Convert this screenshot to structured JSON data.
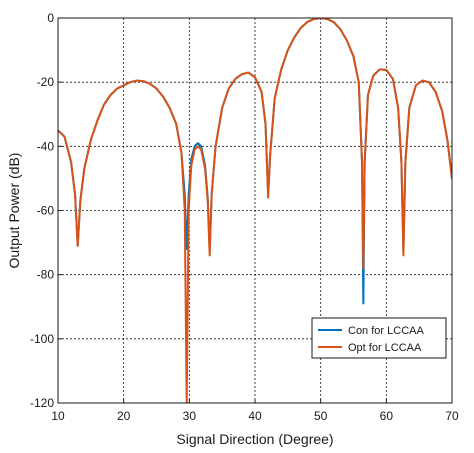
{
  "chart_data": {
    "type": "line",
    "title": "",
    "xlabel": "Signal Direction (Degree)",
    "ylabel": "Output Power (dB)",
    "xlim": [
      10,
      70
    ],
    "ylim": [
      -120,
      0
    ],
    "xticks": [
      10,
      20,
      30,
      40,
      50,
      60,
      70
    ],
    "yticks": [
      0,
      -20,
      -40,
      -60,
      -80,
      -100,
      -120
    ],
    "grid": true,
    "legend_position": "bottom-right",
    "series": [
      {
        "name": "Con for LCCAA",
        "color": "#0072BD",
        "points": [
          [
            10,
            -35
          ],
          [
            11,
            -37
          ],
          [
            12,
            -45
          ],
          [
            12.6,
            -55
          ],
          [
            13,
            -71
          ],
          [
            13.4,
            -57
          ],
          [
            14,
            -47
          ],
          [
            15,
            -38
          ],
          [
            16,
            -32
          ],
          [
            17,
            -27
          ],
          [
            18,
            -24
          ],
          [
            19,
            -22
          ],
          [
            20,
            -21
          ],
          [
            21,
            -20
          ],
          [
            22,
            -19.5
          ],
          [
            23,
            -19.7
          ],
          [
            24,
            -20.5
          ],
          [
            25,
            -22
          ],
          [
            26,
            -24.5
          ],
          [
            27,
            -28
          ],
          [
            28,
            -33
          ],
          [
            28.8,
            -42
          ],
          [
            29.3,
            -55
          ],
          [
            29.6,
            -72
          ],
          [
            29.9,
            -55
          ],
          [
            30.3,
            -44
          ],
          [
            30.8,
            -40
          ],
          [
            31.3,
            -39
          ],
          [
            31.8,
            -40
          ],
          [
            32.4,
            -46
          ],
          [
            32.8,
            -56
          ],
          [
            33.1,
            -73
          ],
          [
            33.4,
            -55
          ],
          [
            34,
            -40
          ],
          [
            35,
            -28
          ],
          [
            36,
            -22
          ],
          [
            37,
            -19
          ],
          [
            38,
            -17.5
          ],
          [
            39,
            -17
          ],
          [
            40,
            -18.5
          ],
          [
            41,
            -23
          ],
          [
            41.6,
            -33
          ],
          [
            42.0,
            -55
          ],
          [
            42.3,
            -43
          ],
          [
            43,
            -25
          ],
          [
            44,
            -16
          ],
          [
            45,
            -10
          ],
          [
            46,
            -6
          ],
          [
            47,
            -3
          ],
          [
            48,
            -1.2
          ],
          [
            49,
            -0.3
          ],
          [
            50,
            0
          ],
          [
            51,
            -0.3
          ],
          [
            52,
            -1.3
          ],
          [
            53,
            -3.5
          ],
          [
            54,
            -7
          ],
          [
            55,
            -12
          ],
          [
            55.8,
            -20
          ],
          [
            56.3,
            -45
          ],
          [
            56.5,
            -89
          ],
          [
            56.7,
            -45
          ],
          [
            57.2,
            -24
          ],
          [
            58,
            -18
          ],
          [
            59,
            -16
          ],
          [
            60,
            -16.2
          ],
          [
            61,
            -19
          ],
          [
            61.8,
            -28
          ],
          [
            62.3,
            -45
          ],
          [
            62.6,
            -73
          ],
          [
            62.9,
            -45
          ],
          [
            63.5,
            -28
          ],
          [
            64.5,
            -21
          ],
          [
            65.5,
            -19.5
          ],
          [
            66.5,
            -20
          ],
          [
            67.5,
            -23
          ],
          [
            68.5,
            -29
          ],
          [
            69.3,
            -38
          ],
          [
            70,
            -50
          ]
        ]
      },
      {
        "name": "Opt for LCCAA",
        "color": "#D95319",
        "points": [
          [
            10,
            -35
          ],
          [
            11,
            -37
          ],
          [
            12,
            -45
          ],
          [
            12.6,
            -55
          ],
          [
            13,
            -71
          ],
          [
            13.4,
            -57
          ],
          [
            14,
            -47
          ],
          [
            15,
            -38
          ],
          [
            16,
            -32
          ],
          [
            17,
            -27
          ],
          [
            18,
            -24
          ],
          [
            19,
            -22
          ],
          [
            20,
            -21
          ],
          [
            21,
            -20
          ],
          [
            22,
            -19.5
          ],
          [
            23,
            -19.7
          ],
          [
            24,
            -20.5
          ],
          [
            25,
            -22
          ],
          [
            26,
            -24.5
          ],
          [
            27,
            -28
          ],
          [
            28,
            -33
          ],
          [
            28.8,
            -42
          ],
          [
            29.3,
            -60
          ],
          [
            29.6,
            -120
          ],
          [
            29.9,
            -60
          ],
          [
            30.3,
            -46
          ],
          [
            30.8,
            -41
          ],
          [
            31.3,
            -40
          ],
          [
            31.8,
            -41
          ],
          [
            32.4,
            -47
          ],
          [
            32.8,
            -57
          ],
          [
            33.1,
            -74
          ],
          [
            33.4,
            -55
          ],
          [
            34,
            -40
          ],
          [
            35,
            -28
          ],
          [
            36,
            -22
          ],
          [
            37,
            -19
          ],
          [
            38,
            -17.5
          ],
          [
            39,
            -17
          ],
          [
            40,
            -18.5
          ],
          [
            41,
            -23
          ],
          [
            41.6,
            -33
          ],
          [
            42.0,
            -56
          ],
          [
            42.3,
            -43
          ],
          [
            43,
            -25
          ],
          [
            44,
            -16
          ],
          [
            45,
            -10
          ],
          [
            46,
            -6
          ],
          [
            47,
            -3
          ],
          [
            48,
            -1.2
          ],
          [
            49,
            -0.3
          ],
          [
            50,
            0
          ],
          [
            51,
            -0.3
          ],
          [
            52,
            -1.3
          ],
          [
            53,
            -3.5
          ],
          [
            54,
            -7
          ],
          [
            55,
            -12
          ],
          [
            55.8,
            -20
          ],
          [
            56.3,
            -45
          ],
          [
            56.5,
            -78
          ],
          [
            56.7,
            -45
          ],
          [
            57.2,
            -24
          ],
          [
            58,
            -18
          ],
          [
            59,
            -16
          ],
          [
            60,
            -16.2
          ],
          [
            61,
            -19
          ],
          [
            61.8,
            -28
          ],
          [
            62.3,
            -45
          ],
          [
            62.6,
            -74
          ],
          [
            62.9,
            -45
          ],
          [
            63.5,
            -28
          ],
          [
            64.5,
            -21
          ],
          [
            65.5,
            -19.5
          ],
          [
            66.5,
            -20
          ],
          [
            67.5,
            -23
          ],
          [
            68.5,
            -29
          ],
          [
            69.3,
            -38
          ],
          [
            70,
            -50
          ]
        ]
      }
    ]
  }
}
